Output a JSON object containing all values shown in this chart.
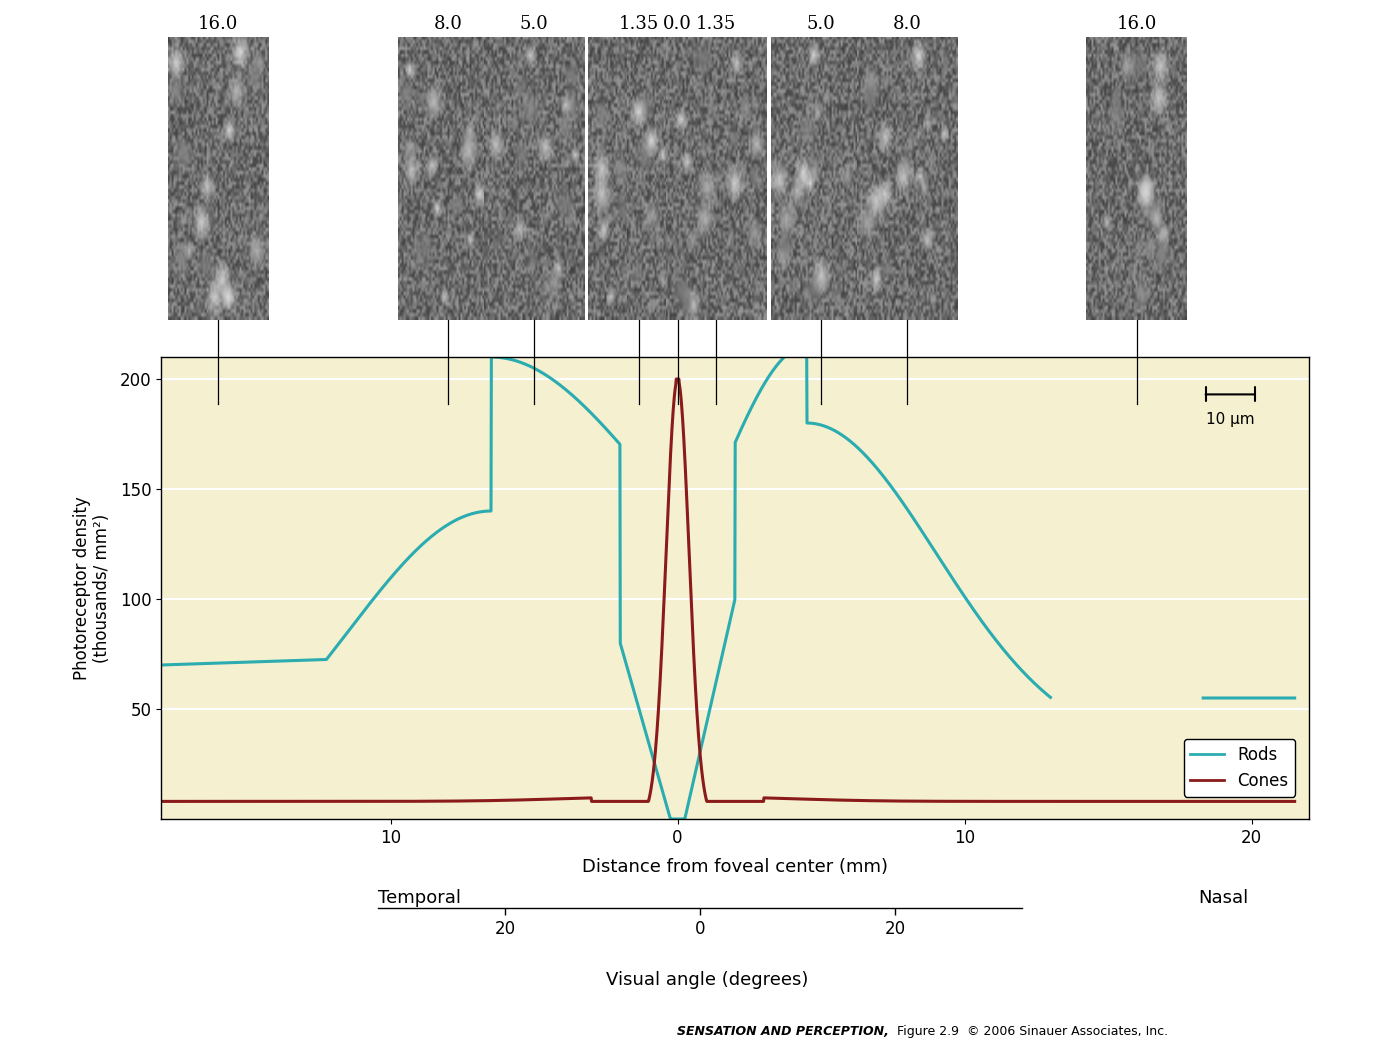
{
  "background_color": "#faf8e8",
  "plot_bg_color": "#f5f0d0",
  "rods_color": "#2aacb0",
  "cones_color": "#8b1a1a",
  "ylabel": "Photoreceptor density\n(thousands/ mm²)",
  "xlabel": "Distance from foveal center (mm)",
  "xlabel2": "Visual angle (degrees)",
  "ylim": [
    0,
    210
  ],
  "yticks": [
    50,
    100,
    150,
    200
  ],
  "xlim": [
    -18,
    22
  ],
  "legend_rods": "Rods",
  "legend_cones": "Cones",
  "scalebar_label": "10 μm",
  "temporal_label": "Temporal",
  "nasal_label": "Nasal",
  "image_labels": [
    "16.0",
    "8.0",
    "5.0",
    "1.35",
    "0.0",
    "1.35",
    "5.0",
    "8.0",
    "16.0"
  ],
  "image_x_positions": [
    -16.0,
    -8.0,
    -5.0,
    -1.35,
    0.0,
    1.35,
    5.0,
    8.0,
    16.0
  ],
  "footnote_bold": "SENSATION AND PERCEPTION,",
  "footnote_normal": "  Figure 2.9  © 2006 Sinauer Associates, Inc."
}
